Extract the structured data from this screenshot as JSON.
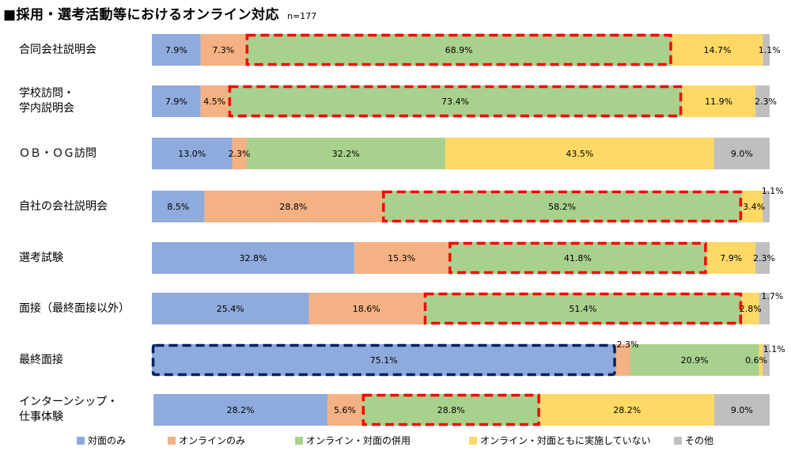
{
  "title": "■採用・選考活動等におけるオンライン対応",
  "sample_size": "n=177",
  "chart_data": {
    "type": "bar",
    "orientation": "horizontal",
    "stacked": true,
    "percent_stacked": true,
    "title": "■採用・選考活動等におけるオンライン対応",
    "subtitle": "n=177",
    "xlabel": "",
    "ylabel": "",
    "xlim": [
      0,
      100
    ],
    "grid": false,
    "legend_position": "bottom",
    "categories": [
      "合同会社説明会",
      "学校訪問・\n学内説明会",
      "ＯＢ・ＯＧ訪問",
      "自社の会社説明会",
      "選考試験",
      "面接（最終面接以外）",
      "最終面接",
      "インターンシップ・\n仕事体験"
    ],
    "series": [
      {
        "name": "対面のみ",
        "color": "#8FAADC",
        "values": [
          7.9,
          7.9,
          13.0,
          8.5,
          32.8,
          25.4,
          75.1,
          28.2
        ]
      },
      {
        "name": "オンラインのみ",
        "color": "#F4B183",
        "values": [
          7.3,
          4.5,
          2.3,
          28.8,
          15.3,
          18.6,
          2.3,
          5.6
        ]
      },
      {
        "name": "オンライン・対面の併用",
        "color": "#A9D18E",
        "values": [
          68.9,
          73.4,
          32.2,
          58.2,
          41.8,
          51.4,
          20.9,
          28.8
        ]
      },
      {
        "name": "オンライン・対面ともに実施していない",
        "color": "#FFD966",
        "values": [
          14.7,
          11.9,
          43.5,
          3.4,
          7.9,
          2.8,
          0.6,
          28.2
        ]
      },
      {
        "name": "その他",
        "color": "#BFBFBF",
        "values": [
          1.1,
          2.3,
          9.0,
          1.1,
          2.3,
          1.7,
          1.1,
          9.0
        ]
      }
    ],
    "data_labels": [
      [
        "7.9%",
        "7.3%",
        "68.9%",
        "14.7%",
        "1.1%"
      ],
      [
        "7.9%",
        "4.5%",
        "73.4%",
        "11.9%",
        "2.3%"
      ],
      [
        "13.0%",
        "2.3%",
        "32.2%",
        "43.5%",
        "9.0%"
      ],
      [
        "8.5%",
        "28.8%",
        "58.2%",
        "3.4%",
        "1.1%"
      ],
      [
        "32.8%",
        "15.3%",
        "41.8%",
        "7.9%",
        "2.3%"
      ],
      [
        "25.4%",
        "18.6%",
        "51.4%",
        "2.8%",
        "1.7%"
      ],
      [
        "75.1%",
        "2.3%",
        "20.9%",
        "0.6%",
        "1.1%"
      ],
      [
        "28.2%",
        "5.6%",
        "28.8%",
        "28.2%",
        "9.0%"
      ]
    ],
    "highlights": [
      {
        "category_index": 0,
        "series_index": 2,
        "style": "red-dashed",
        "color": "#FF0000"
      },
      {
        "category_index": 1,
        "series_index": 2,
        "style": "red-dashed",
        "color": "#FF0000"
      },
      {
        "category_index": 3,
        "series_index": 2,
        "style": "red-dashed",
        "color": "#FF0000"
      },
      {
        "category_index": 4,
        "series_index": 2,
        "style": "red-dashed",
        "color": "#FF0000"
      },
      {
        "category_index": 5,
        "series_index": 2,
        "style": "red-dashed",
        "color": "#FF0000"
      },
      {
        "category_index": 6,
        "series_index": 0,
        "style": "navy-dashed",
        "color": "#002060"
      },
      {
        "category_index": 7,
        "series_index": 2,
        "style": "red-dashed",
        "color": "#FF0000"
      }
    ]
  }
}
